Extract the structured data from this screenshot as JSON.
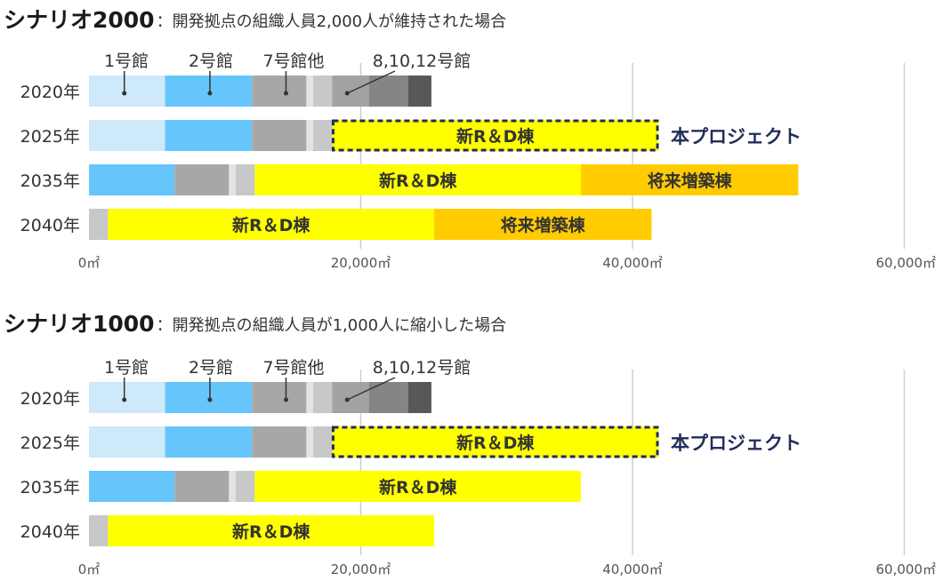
{
  "chart_data": [
    {
      "type": "bar",
      "orientation": "horizontal",
      "stacked": true,
      "title": "シナリオ2000",
      "subtitle": "：開発拠点の組織人員2,000人が維持された場合",
      "unit": "㎡",
      "xlim": [
        0,
        60000
      ],
      "xticks": [
        "0㎡",
        "20,000㎡",
        "40,000㎡",
        "60,000㎡"
      ],
      "grid": true,
      "categories": [
        "2020年",
        "2025年",
        "2035年",
        "2040年"
      ],
      "building_labels": [
        "1号館",
        "2号館",
        "7号館他",
        "8,10,12号館"
      ],
      "rows": [
        {
          "label": "2020年",
          "segments": [
            {
              "v": 5600,
              "color": "#cde9fa"
            },
            {
              "v": 6400,
              "color": "#66c6fb"
            },
            {
              "v": 4000,
              "color": "#a7a7a7"
            },
            {
              "v": 500,
              "color": "#e3e3e3"
            },
            {
              "v": 1400,
              "color": "#c8c8c8"
            },
            {
              "v": 2700,
              "color": "#a2a2a2"
            },
            {
              "v": 2900,
              "color": "#858585"
            },
            {
              "v": 1700,
              "color": "#585858"
            }
          ]
        },
        {
          "label": "2025年",
          "segments": [
            {
              "v": 5600,
              "color": "#cde9fa"
            },
            {
              "v": 6400,
              "color": "#66c6fb"
            },
            {
              "v": 4000,
              "color": "#a7a7a7"
            },
            {
              "v": 500,
              "color": "#e3e3e3"
            },
            {
              "v": 1400,
              "color": "#c8c8c8"
            },
            {
              "v": 24000,
              "color": "#ffff00",
              "text": "新R＆D棟",
              "dashed": true
            }
          ]
        },
        {
          "label": "2035年",
          "segments": [
            {
              "v": 6300,
              "color": "#66c6fb"
            },
            {
              "v": 4000,
              "color": "#a7a7a7"
            },
            {
              "v": 500,
              "color": "#e3e3e3"
            },
            {
              "v": 1400,
              "color": "#c8c8c8"
            },
            {
              "v": 24000,
              "color": "#ffff00",
              "text": "新R＆D棟"
            },
            {
              "v": 16000,
              "color": "#ffcc00",
              "text": "将来増築棟"
            }
          ]
        },
        {
          "label": "2040年",
          "segments": [
            {
              "v": 1400,
              "color": "#c8c8c8"
            },
            {
              "v": 24000,
              "color": "#ffff00",
              "text": "新R＆D棟"
            },
            {
              "v": 16000,
              "color": "#ffcc00",
              "text": "将来増築棟"
            }
          ]
        }
      ],
      "annotation": "本プロジェクト"
    },
    {
      "type": "bar",
      "orientation": "horizontal",
      "stacked": true,
      "title": "シナリオ1000",
      "subtitle": "：開発拠点の組織人員が1,000人に縮小した場合",
      "unit": "㎡",
      "xlim": [
        0,
        60000
      ],
      "xticks": [
        "0㎡",
        "20,000㎡",
        "40,000㎡",
        "60,000㎡"
      ],
      "grid": true,
      "categories": [
        "2020年",
        "2025年",
        "2035年",
        "2040年"
      ],
      "building_labels": [
        "1号館",
        "2号館",
        "7号館他",
        "8,10,12号館"
      ],
      "rows": [
        {
          "label": "2020年",
          "segments": [
            {
              "v": 5600,
              "color": "#cde9fa"
            },
            {
              "v": 6400,
              "color": "#66c6fb"
            },
            {
              "v": 4000,
              "color": "#a7a7a7"
            },
            {
              "v": 500,
              "color": "#e3e3e3"
            },
            {
              "v": 1400,
              "color": "#c8c8c8"
            },
            {
              "v": 2700,
              "color": "#a2a2a2"
            },
            {
              "v": 2900,
              "color": "#858585"
            },
            {
              "v": 1700,
              "color": "#585858"
            }
          ]
        },
        {
          "label": "2025年",
          "segments": [
            {
              "v": 5600,
              "color": "#cde9fa"
            },
            {
              "v": 6400,
              "color": "#66c6fb"
            },
            {
              "v": 4000,
              "color": "#a7a7a7"
            },
            {
              "v": 500,
              "color": "#e3e3e3"
            },
            {
              "v": 1400,
              "color": "#c8c8c8"
            },
            {
              "v": 24000,
              "color": "#ffff00",
              "text": "新R＆D棟",
              "dashed": true
            }
          ]
        },
        {
          "label": "2035年",
          "segments": [
            {
              "v": 6300,
              "color": "#66c6fb"
            },
            {
              "v": 4000,
              "color": "#a7a7a7"
            },
            {
              "v": 500,
              "color": "#e3e3e3"
            },
            {
              "v": 1400,
              "color": "#c8c8c8"
            },
            {
              "v": 24000,
              "color": "#ffff00",
              "text": "新R＆D棟"
            }
          ]
        },
        {
          "label": "2040年",
          "segments": [
            {
              "v": 1400,
              "color": "#c8c8c8"
            },
            {
              "v": 24000,
              "color": "#ffff00",
              "text": "新R＆D棟"
            }
          ]
        }
      ],
      "annotation": "本プロジェクト"
    }
  ]
}
